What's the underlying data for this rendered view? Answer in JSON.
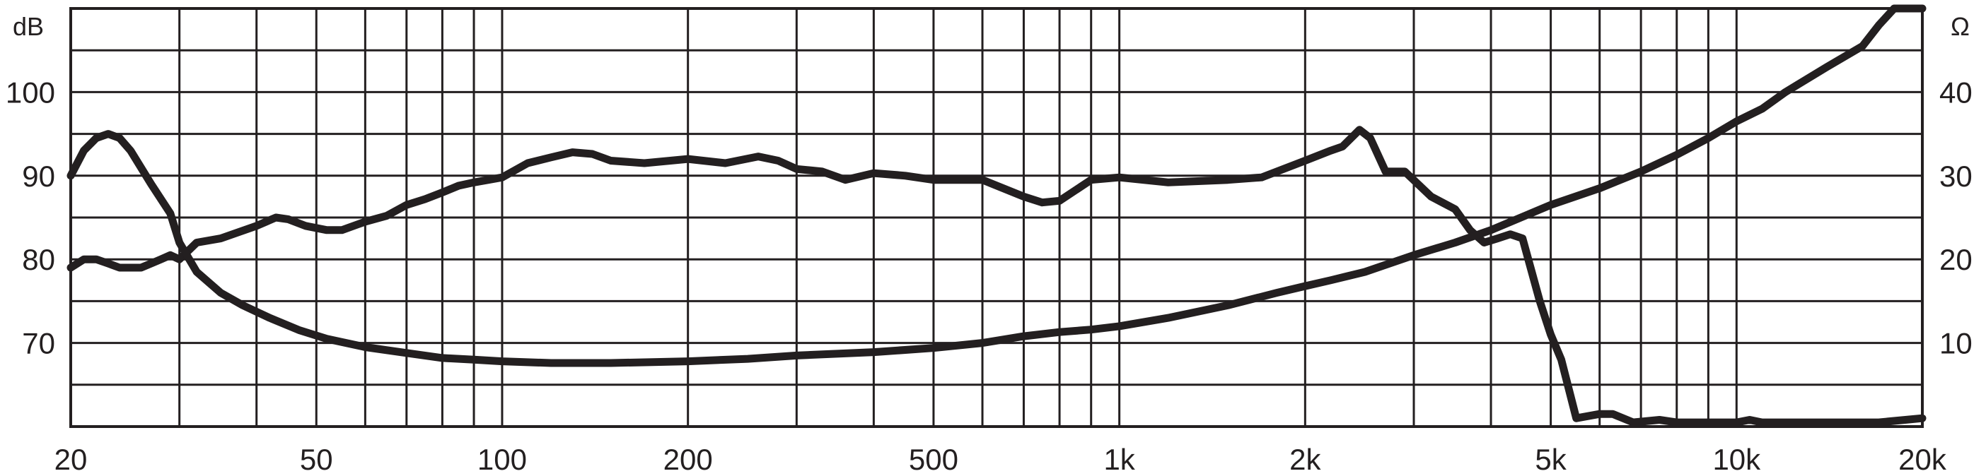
{
  "chart_data": {
    "type": "line",
    "title": "",
    "xlabel": "",
    "x_scale": "log",
    "xlim": [
      20,
      20000
    ],
    "ylim_left": [
      60,
      110
    ],
    "ylim_right": [
      0,
      50
    ],
    "grid": true,
    "legend": "none",
    "left_unit": "dB",
    "right_unit": "Ω",
    "x_ticks": [
      {
        "v": 20,
        "label": "20"
      },
      {
        "v": 50,
        "label": "50"
      },
      {
        "v": 100,
        "label": "100"
      },
      {
        "v": 200,
        "label": "200"
      },
      {
        "v": 500,
        "label": "500"
      },
      {
        "v": 1000,
        "label": "1k"
      },
      {
        "v": 2000,
        "label": "2k"
      },
      {
        "v": 5000,
        "label": "5k"
      },
      {
        "v": 10000,
        "label": "10k"
      },
      {
        "v": 20000,
        "label": "20k"
      }
    ],
    "x_grid": [
      20,
      30,
      40,
      50,
      60,
      70,
      80,
      90,
      100,
      200,
      300,
      400,
      500,
      600,
      700,
      800,
      900,
      1000,
      2000,
      3000,
      4000,
      5000,
      6000,
      7000,
      8000,
      9000,
      10000,
      20000
    ],
    "y_left_ticks": [
      {
        "v": 70,
        "label": "70"
      },
      {
        "v": 80,
        "label": "80"
      },
      {
        "v": 90,
        "label": "90"
      },
      {
        "v": 100,
        "label": "100"
      }
    ],
    "y_right_ticks": [
      {
        "v": 10,
        "label": "10"
      },
      {
        "v": 20,
        "label": "20"
      },
      {
        "v": 30,
        "label": "30"
      },
      {
        "v": 40,
        "label": "40"
      }
    ],
    "y_grid": [
      65,
      70,
      75,
      80,
      85,
      90,
      95,
      100,
      105
    ],
    "series": [
      {
        "axis": "left",
        "x": [
          20,
          21,
          22,
          23,
          24,
          25,
          26,
          27,
          28,
          29,
          30,
          32,
          35,
          40,
          43,
          45,
          48,
          52,
          55,
          60,
          65,
          70,
          75,
          80,
          85,
          90,
          95,
          100,
          110,
          120,
          130,
          140,
          150,
          170,
          200,
          230,
          260,
          280,
          300,
          330,
          360,
          400,
          450,
          500,
          600,
          700,
          750,
          800,
          900,
          1000,
          1200,
          1500,
          1700,
          2000,
          2200,
          2300,
          2450,
          2550,
          2700,
          2900,
          3200,
          3500,
          3700,
          3900,
          4100,
          4300,
          4500,
          4800,
          5000,
          5200,
          5500,
          6000,
          6300,
          6800,
          7500,
          8000,
          9000,
          10000,
          10500,
          11000,
          13000,
          15000,
          17000,
          20000
        ],
        "y": [
          79,
          80,
          80,
          79.5,
          79,
          79,
          79,
          79.5,
          80,
          80.5,
          80,
          82,
          82.5,
          84,
          85,
          84.8,
          84,
          83.5,
          83.5,
          84.5,
          85.2,
          86.5,
          87.2,
          88,
          88.8,
          89.2,
          89.5,
          89.8,
          91.5,
          92.2,
          92.8,
          92.6,
          91.8,
          91.5,
          92,
          91.5,
          92.3,
          91.8,
          90.8,
          90.5,
          89.5,
          90.3,
          90,
          89.5,
          89.5,
          87.5,
          86.8,
          87,
          89.5,
          89.8,
          89.2,
          89.5,
          89.8,
          91.8,
          93,
          93.5,
          95.5,
          94.5,
          90.5,
          90.5,
          87.5,
          86,
          83.5,
          82,
          82.5,
          83,
          82.5,
          75,
          71,
          68,
          61,
          61.5,
          61.5,
          60.5,
          60.8,
          60.5,
          60.5,
          60.5,
          60.8,
          60.5,
          60.5,
          60.5,
          60.5,
          61
        ]
      },
      {
        "axis": "right",
        "x": [
          20,
          21,
          22,
          23,
          24,
          25,
          27,
          29,
          30,
          32,
          35,
          38,
          42,
          47,
          52,
          60,
          70,
          80,
          90,
          100,
          120,
          150,
          200,
          250,
          300,
          400,
          500,
          600,
          700,
          800,
          900,
          1000,
          1200,
          1500,
          1800,
          2000,
          2200,
          2500,
          3000,
          3500,
          4000,
          5000,
          6000,
          7000,
          8000,
          9000,
          10000,
          11000,
          12000,
          14000,
          16000,
          17000,
          18000,
          20000
        ],
        "y": [
          30,
          33,
          34.5,
          35,
          34.5,
          33,
          29,
          25.5,
          22,
          18.5,
          16,
          14.5,
          13,
          11.5,
          10.5,
          9.5,
          8.8,
          8.2,
          8,
          7.8,
          7.6,
          7.6,
          7.8,
          8.1,
          8.5,
          8.9,
          9.4,
          10,
          10.8,
          11.3,
          11.6,
          12,
          13,
          14.5,
          16,
          16.8,
          17.5,
          18.5,
          20.5,
          22,
          23.5,
          26.5,
          28.5,
          30.5,
          32.5,
          34.5,
          36.5,
          38,
          40,
          43,
          45.5,
          48,
          50,
          50
        ]
      }
    ]
  }
}
